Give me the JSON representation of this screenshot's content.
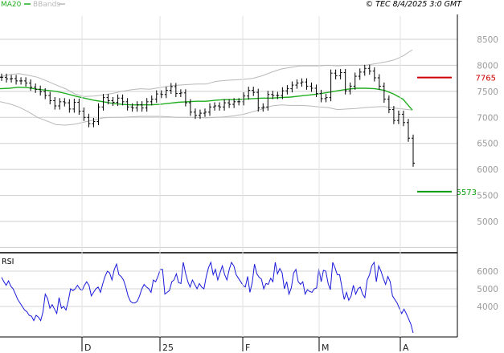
{
  "chart_data": {
    "type": "line",
    "legend": {
      "ma_label": "MA20",
      "bands_label": "BBands",
      "ma_color": "#1fae1f",
      "bands_color": "#b8b8b8"
    },
    "copyright": "© TEC 8/4/2025 3:0 GMT",
    "price_panel": {
      "ylim": [
        4600,
        8900
      ],
      "yticks": [
        5000,
        5500,
        6000,
        6500,
        7000,
        7500,
        8000,
        8500
      ],
      "price_bars": [
        7770,
        7740,
        7745,
        7700,
        7700,
        7660,
        7580,
        7540,
        7490,
        7420,
        7320,
        7220,
        7300,
        7280,
        7160,
        7290,
        7120,
        7000,
        6880,
        6920,
        7200,
        7380,
        7320,
        7290,
        7370,
        7300,
        7200,
        7180,
        7240,
        7180,
        7300,
        7350,
        7450,
        7440,
        7520,
        7590,
        7460,
        7470,
        7280,
        7100,
        7040,
        7080,
        7100,
        7200,
        7220,
        7200,
        7280,
        7250,
        7300,
        7300,
        7410,
        7520,
        7480,
        7180,
        7200,
        7440,
        7420,
        7420,
        7510,
        7550,
        7620,
        7660,
        7680,
        7600,
        7560,
        7460,
        7360,
        7380,
        7850,
        7800,
        7860,
        7510,
        7600,
        7790,
        7870,
        7940,
        7890,
        7760,
        7600,
        7350,
        7150,
        6940,
        7060,
        6900,
        6600,
        6120
      ],
      "ma20": [
        7550,
        7560,
        7580,
        7570,
        7540,
        7520,
        7500,
        7460,
        7410,
        7370,
        7330,
        7300,
        7270,
        7250,
        7240,
        7240,
        7240,
        7250,
        7270,
        7290,
        7300,
        7310,
        7310,
        7330,
        7340,
        7340,
        7350,
        7360,
        7370,
        7370,
        7380,
        7390,
        7410,
        7430,
        7450,
        7480,
        7510,
        7540,
        7560,
        7560,
        7550,
        7520,
        7450,
        7350,
        7140
      ],
      "bb_upper": [
        7780,
        7820,
        7840,
        7810,
        7770,
        7700,
        7620,
        7550,
        7450,
        7400,
        7410,
        7430,
        7460,
        7500,
        7530,
        7550,
        7540,
        7570,
        7600,
        7620,
        7630,
        7640,
        7640,
        7690,
        7710,
        7720,
        7730,
        7750,
        7800,
        7870,
        7930,
        7960,
        7990,
        7990,
        7990,
        8000,
        7990,
        8000,
        8000,
        8000,
        8030,
        8060,
        8100,
        8180,
        8300
      ],
      "bb_lower": [
        7300,
        7260,
        7200,
        7110,
        7000,
        6930,
        6860,
        6850,
        6870,
        6910,
        6950,
        6990,
        7000,
        7000,
        7010,
        7020,
        7020,
        7020,
        7010,
        7000,
        7000,
        7000,
        6990,
        7000,
        7010,
        7030,
        7060,
        7110,
        7160,
        7220,
        7240,
        7230,
        7230,
        7220,
        7200,
        7190,
        7150,
        7160,
        7170,
        7190,
        7200,
        7210,
        7180,
        7160,
        7140
      ],
      "resistance": {
        "value": 7765,
        "label": "7765",
        "color": "#cc0000"
      },
      "support": {
        "value": 5573,
        "label": "5573",
        "color": "#0a9d0a"
      }
    },
    "rsi_panel": {
      "title": "RSI",
      "yticks": [
        4000,
        5000,
        6000
      ],
      "tick_labels": [
        "4000",
        "5000",
        "6000"
      ],
      "ylim": [
        2800,
        7300
      ],
      "values": [
        5650,
        5400,
        5200,
        5450,
        5150,
        5000,
        4700,
        4400,
        4200,
        4000,
        3800,
        3700,
        3500,
        3450,
        3200,
        3500,
        3400,
        3200,
        3700,
        4700,
        4450,
        3900,
        4100,
        3850,
        3600,
        4500,
        3900,
        4000,
        3800,
        4300,
        5000,
        4900,
        5000,
        5200,
        5000,
        4900,
        5200,
        5400,
        5200,
        4600,
        4800,
        5000,
        5100,
        4800,
        5300,
        5700,
        6000,
        5900,
        5500,
        6100,
        6400,
        5800,
        5700,
        5500,
        5100,
        4600,
        4300,
        4200,
        4200,
        4300,
        4600,
        5000,
        5250,
        5100,
        5000,
        4800,
        5500,
        5400,
        5700,
        6100,
        6100,
        4700,
        4800,
        4900,
        5400,
        5500,
        5850,
        5350,
        5300,
        6500,
        5900,
        5400,
        5100,
        5500,
        5250,
        5000,
        5300,
        5100,
        5000,
        5700,
        6200,
        6500,
        5800,
        6100,
        5500,
        5900,
        6300,
        5800,
        5500,
        6100,
        6500,
        6300,
        5800,
        5600,
        5400,
        5200,
        5100,
        5700,
        4800,
        5350,
        6400,
        5850,
        5650,
        5550,
        5000,
        5300,
        5250,
        5600,
        5400,
        6500,
        5850,
        6150,
        5900,
        5000,
        5400,
        4700,
        5050,
        5900,
        6100,
        5400,
        5250,
        5400,
        4700,
        4950,
        4850,
        4800,
        5000,
        5050,
        6150,
        5400,
        6050,
        6000,
        5300,
        4950,
        6500,
        6200,
        5800,
        5800,
        5100,
        4400,
        4800,
        4350,
        4600,
        5200,
        4700,
        5000,
        5100,
        4700,
        4500,
        5500,
        5800,
        6300,
        6500,
        5400,
        6300,
        6000,
        5600,
        5250,
        5700,
        5400,
        4600,
        4400,
        4200,
        3900,
        3600,
        3850,
        3600,
        3300,
        3000,
        2500
      ]
    },
    "x_axis": {
      "labels": [
        "D",
        "25",
        "F",
        "M",
        "A"
      ]
    }
  }
}
